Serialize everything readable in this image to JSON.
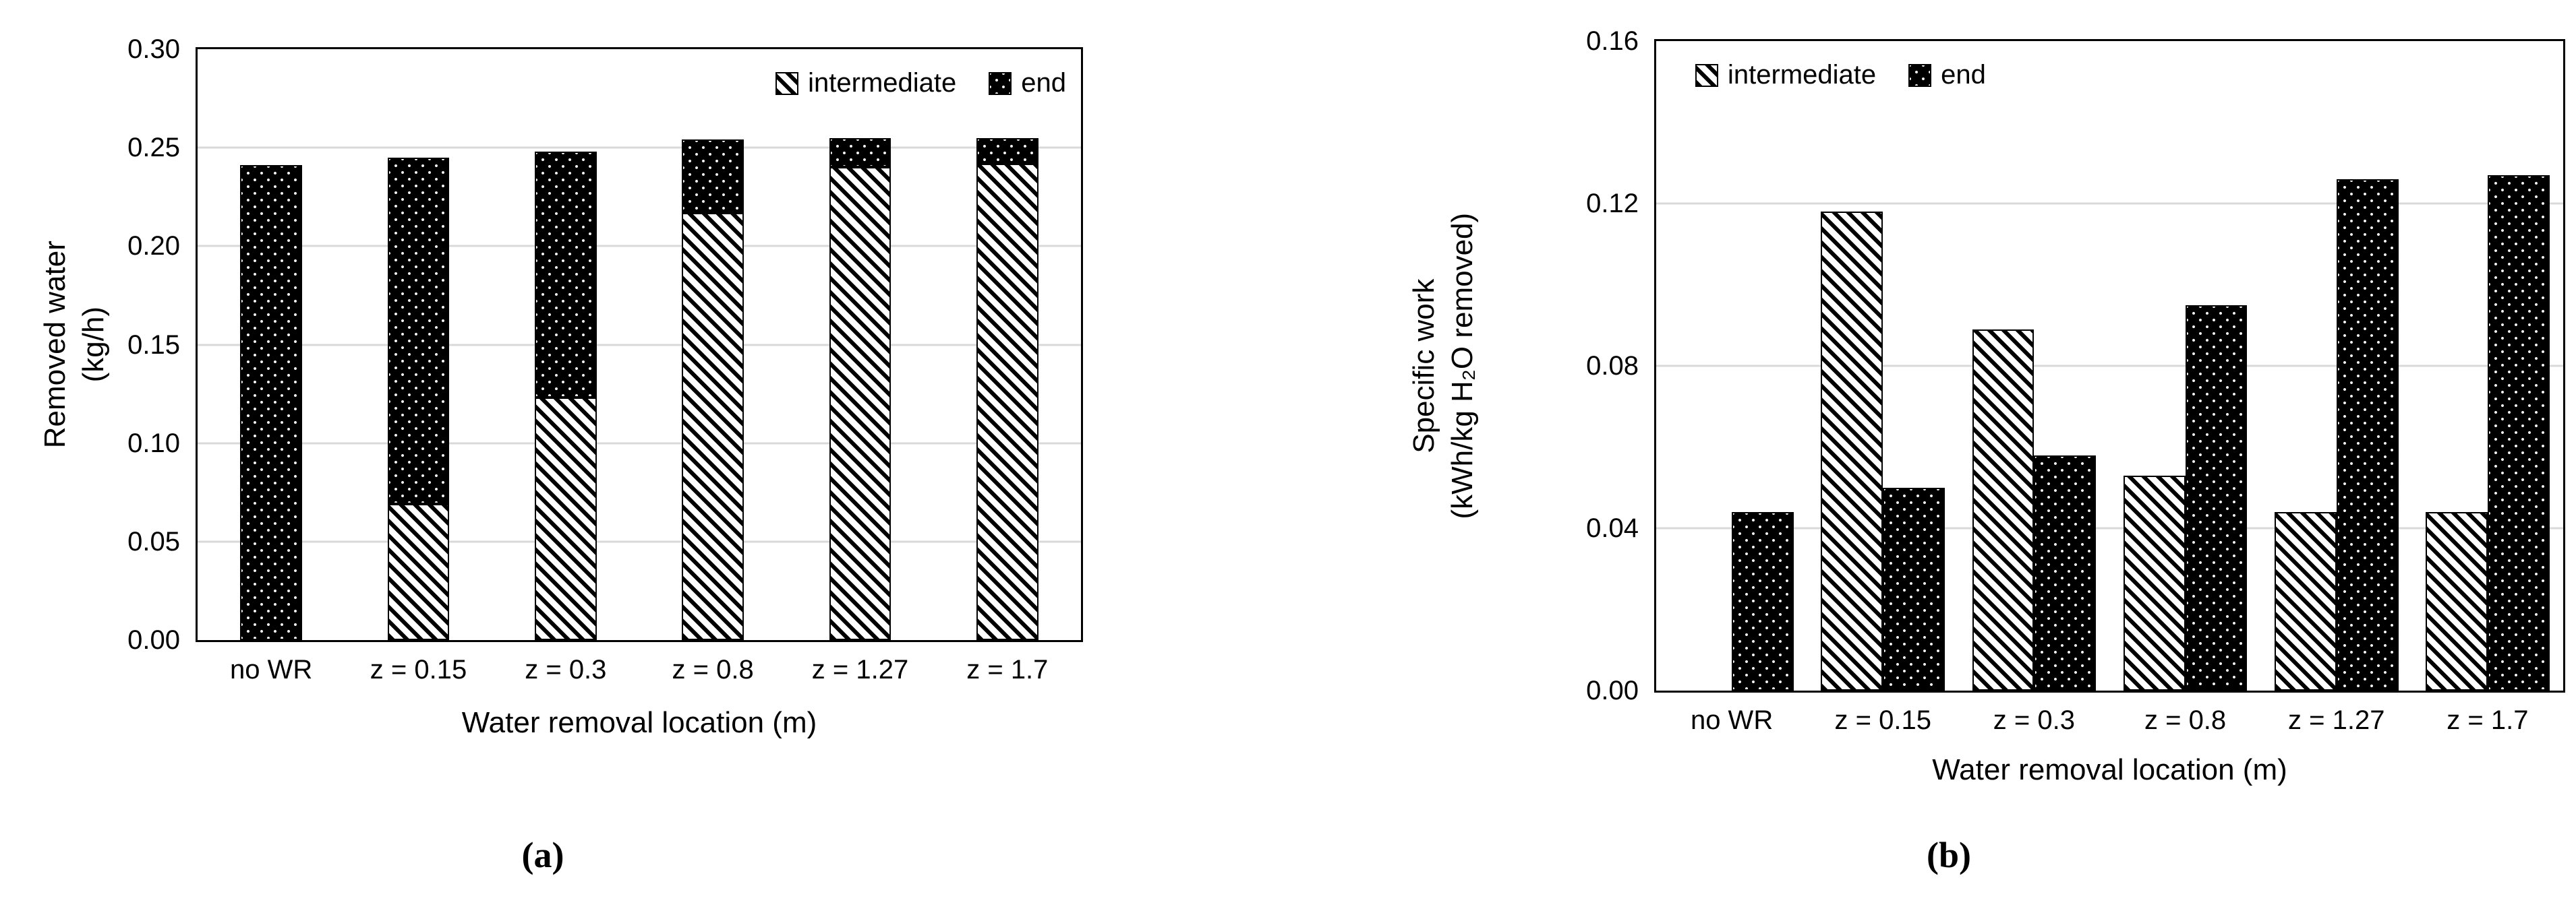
{
  "colors": {
    "ink": "#000000",
    "background": "#ffffff",
    "gridline": "#d9d9d9"
  },
  "chart_data": [
    {
      "id": "a",
      "type": "bar",
      "subtype": "stacked",
      "caption": "(a)",
      "xlabel": "Water removal location (m)",
      "ylabel": "Removed water (kg/h)",
      "ylabel_lines": [
        "Removed water",
        "(kg/h)"
      ],
      "categories": [
        "no WR",
        "z = 0.15",
        "z = 0.3",
        "z = 0.8",
        "z = 1.27",
        "z = 1.7"
      ],
      "series": [
        {
          "name": "intermediate",
          "pattern": "hatch",
          "values": [
            0,
            0.069,
            0.123,
            0.217,
            0.24,
            0.242
          ]
        },
        {
          "name": "end",
          "pattern": "dots",
          "values": [
            0.241,
            0.176,
            0.125,
            0.037,
            0.015,
            0.013
          ]
        }
      ],
      "ylim": [
        0,
        0.3
      ],
      "yticks": [
        0,
        0.05,
        0.1,
        0.15,
        0.2,
        0.25,
        0.3
      ],
      "ytick_labels": [
        "0.00",
        "0.05",
        "0.10",
        "0.15",
        "0.20",
        "0.25",
        "0.30"
      ],
      "grid": true,
      "legend_position": "top-right"
    },
    {
      "id": "b",
      "type": "bar",
      "subtype": "grouped",
      "caption": "(b)",
      "xlabel": "Water removal location (m)",
      "ylabel": "Specific work (kWh/kg H₂O removed)",
      "ylabel_lines": [
        "Specific work",
        "(kWh/kg H₂O removed)"
      ],
      "categories": [
        "no WR",
        "z = 0.15",
        "z = 0.3",
        "z = 0.8",
        "z = 1.27",
        "z = 1.7"
      ],
      "series": [
        {
          "name": "intermediate",
          "pattern": "hatch",
          "values": [
            null,
            0.118,
            0.089,
            0.053,
            0.044,
            0.044
          ]
        },
        {
          "name": "end",
          "pattern": "dots",
          "values": [
            0.044,
            0.05,
            0.058,
            0.095,
            0.126,
            0.127
          ]
        }
      ],
      "ylim": [
        0,
        0.16
      ],
      "yticks": [
        0,
        0.04,
        0.08,
        0.12,
        0.16
      ],
      "ytick_labels": [
        "0.00",
        "0.04",
        "0.08",
        "0.12",
        "0.16"
      ],
      "grid": true,
      "legend_position": "top-left"
    }
  ]
}
